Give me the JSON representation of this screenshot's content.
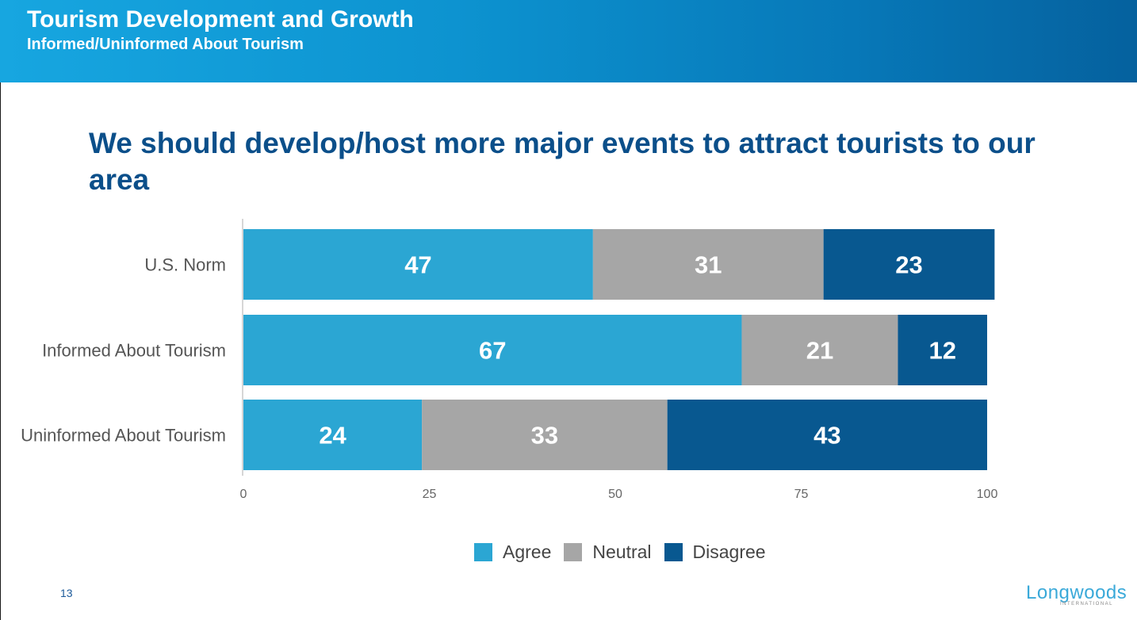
{
  "header": {
    "title": "Tourism Development and Growth",
    "subtitle": "Informed/Uninformed About Tourism"
  },
  "question": "We should develop/host more major events to attract tourists to our area",
  "colors": {
    "agree": "#2ba6d3",
    "neutral": "#a6a6a6",
    "disagree": "#085890"
  },
  "chart_data": {
    "type": "bar",
    "orientation": "horizontal",
    "stacked": true,
    "categories": [
      "U.S. Norm",
      "Informed About Tourism",
      "Uninformed About Tourism"
    ],
    "series": [
      {
        "name": "Agree",
        "values": [
          47,
          67,
          24
        ]
      },
      {
        "name": "Neutral",
        "values": [
          31,
          21,
          33
        ]
      },
      {
        "name": "Disagree",
        "values": [
          23,
          12,
          43
        ]
      }
    ],
    "xlim": [
      0,
      100
    ],
    "xticks": [
      0,
      25,
      50,
      75,
      100
    ],
    "grid": false,
    "legend_position": "bottom"
  },
  "footer": {
    "page_number": "13",
    "logo": "Longwoods",
    "logo_sub": "INTERNATIONAL"
  }
}
